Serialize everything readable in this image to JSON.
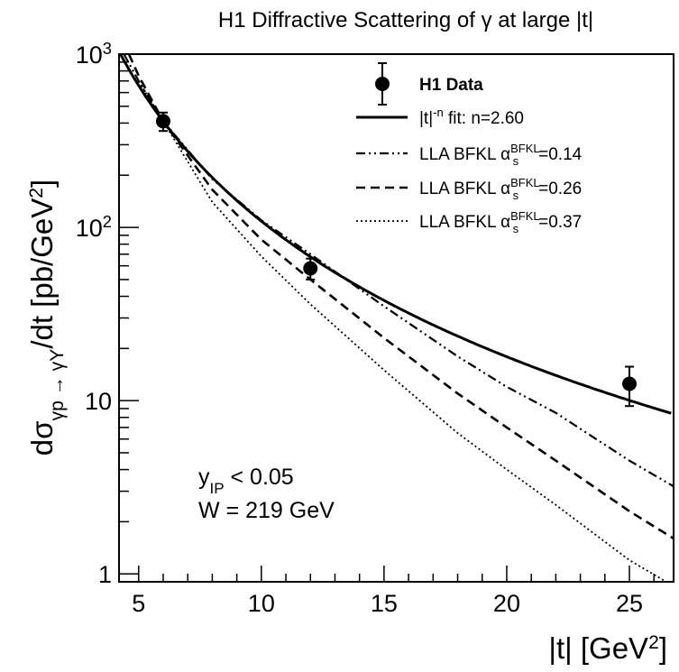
{
  "chart_data": {
    "type": "line",
    "title": "H1 Diffractive Scattering of γ at large |t|",
    "xlabel": "|t| [GeV²]",
    "ylabel": "dσ(γp → γY)/dt [pb/GeV²]",
    "xlim": [
      4.2,
      26.8
    ],
    "ylim": [
      0.9,
      1000
    ],
    "yscale": "log",
    "grid": false,
    "legend_position": "top-right",
    "x_ticks": [
      "5",
      "10",
      "15",
      "20",
      "25"
    ],
    "y_ticks": [
      "1",
      "10",
      "10²",
      "10³"
    ],
    "data_points": {
      "name": "H1 Data",
      "x": [
        6.0,
        12.0,
        25.0
      ],
      "y": [
        410,
        58,
        12.5
      ],
      "err_low": [
        50,
        8,
        3.2
      ],
      "err_high": [
        50,
        8,
        3.2
      ]
    },
    "series": [
      {
        "name": "|t|^-n fit: n=2.60",
        "style": "solid",
        "n": 2.6
      },
      {
        "name": "LLA BFKL αs^BFKL=0.14",
        "style": "dashdot",
        "x": [
          4.4,
          5,
          6,
          8,
          10,
          12,
          15,
          18,
          20,
          22,
          25,
          26.8
        ],
        "y": [
          1000,
          700,
          410,
          190,
          110,
          70,
          35,
          18,
          12,
          8.5,
          4.5,
          3.2
        ]
      },
      {
        "name": "LLA BFKL αs^BFKL=0.26",
        "style": "dashed",
        "x": [
          4.6,
          5,
          6,
          8,
          10,
          12,
          15,
          18,
          20,
          22,
          25,
          26.8
        ],
        "y": [
          1000,
          750,
          410,
          165,
          85,
          50,
          23,
          11,
          7.0,
          4.5,
          2.3,
          1.6
        ]
      },
      {
        "name": "LLA BFKL αs^BFKL=0.37",
        "style": "dotted",
        "x": [
          5,
          6,
          8,
          10,
          12,
          15,
          18,
          20,
          22,
          25,
          26.8
        ],
        "y": [
          700,
          410,
          140,
          68,
          36,
          15,
          6.5,
          4.0,
          2.5,
          1.2,
          0.85
        ]
      }
    ],
    "annotations": [
      {
        "text": "y_IP < 0.05"
      },
      {
        "text": "W = 219 GeV"
      }
    ]
  }
}
